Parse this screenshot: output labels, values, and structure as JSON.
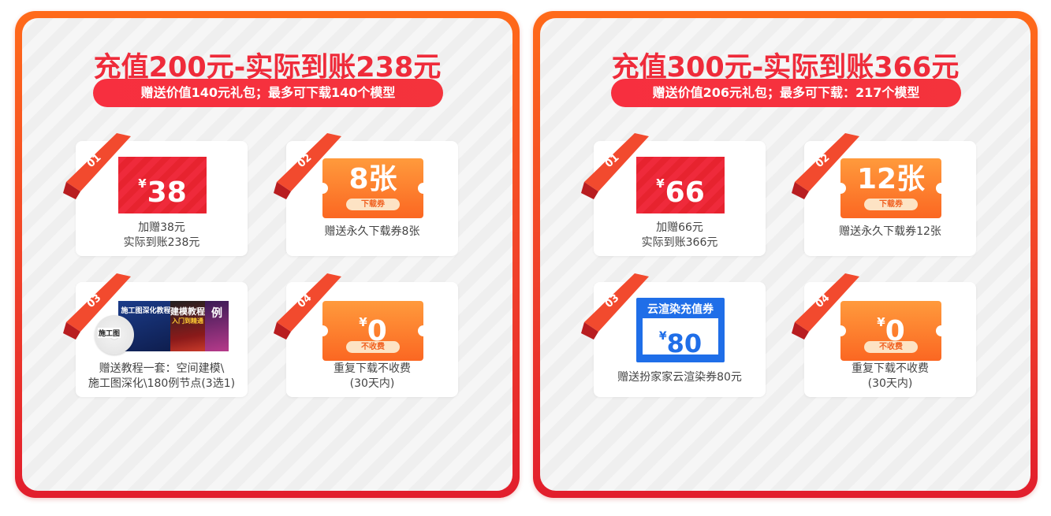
{
  "panels": [
    {
      "headline": "充值200元-实际到账238元",
      "subtitle": "赠送价值140元礼包；最多可下载140个模型",
      "cards": [
        {
          "num": "01",
          "coupon_symbol": "¥",
          "coupon_value": "38",
          "caption_line1": "加赠38元",
          "caption_line2": "实际到账238元"
        },
        {
          "num": "02",
          "ticket_value": "8张",
          "ticket_tag": "下载券",
          "caption_line1": "赠送永久下载券8张"
        },
        {
          "num": "03",
          "disc_label": "施工图",
          "book1": "施工图深化教程",
          "book2": "建模教程",
          "book2_sub": "入门到精通",
          "book3": "例",
          "caption_line1": "赠送教程一套：空间建模\\",
          "caption_line2": "施工图深化\\180例节点(3选1)"
        },
        {
          "num": "04",
          "ticket_symbol": "¥",
          "ticket_value": "0",
          "ticket_tag": "不收费",
          "caption_line1": "重复下载不收费",
          "caption_line2": "(30天内)"
        }
      ]
    },
    {
      "headline": "充值300元-实际到账366元",
      "subtitle": "赠送价值206元礼包；最多可下载：217个模型",
      "cards": [
        {
          "num": "01",
          "coupon_symbol": "¥",
          "coupon_value": "66",
          "caption_line1": "加赠66元",
          "caption_line2": "实际到账366元"
        },
        {
          "num": "02",
          "ticket_value": "12张",
          "ticket_tag": "下载券",
          "caption_line1": "赠送永久下载券12张"
        },
        {
          "num": "03",
          "blue_title": "云渲染充值券",
          "blue_symbol": "¥",
          "blue_value": "80",
          "caption_line1": "赠送扮家家云渲染券80元"
        },
        {
          "num": "04",
          "ticket_symbol": "¥",
          "ticket_value": "0",
          "ticket_tag": "不收费",
          "caption_line1": "重复下载不收费",
          "caption_line2": "(30天内)"
        }
      ]
    }
  ],
  "colors": {
    "panel_orange": "#ff6a1a",
    "panel_red": "#e21e2c",
    "headline_red": "#ef2b3a",
    "ticket_orange": "#fb6722",
    "coupon_blue": "#1f6ee8"
  }
}
